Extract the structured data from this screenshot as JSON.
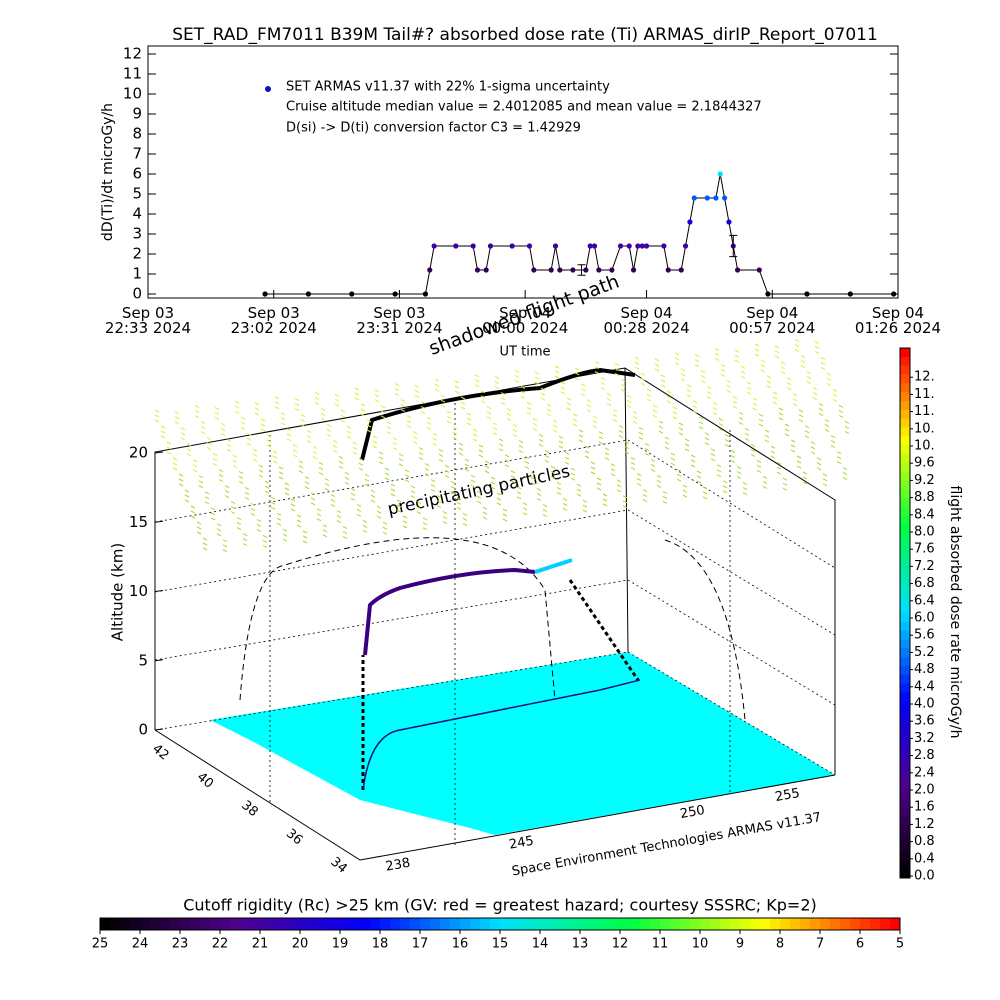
{
  "chart_data": {
    "type": "line",
    "title": "SET_RAD_FM7011  B39M Tail#? absorbed dose rate (Ti) ARMAS_dirIP_Report_07011",
    "ylabel": "dD(Ti)/dt microGy/h",
    "xlabel": "UT time",
    "legend": "SET ARMAS v11.37 with 22% 1-sigma uncertainty",
    "annotations": [
      "Cruise altitude median value = 2.4012085 and mean value = 2.1844327",
      "D(si) -> D(ti) conversion factor C3 = 1.42929"
    ],
    "x": [
      "2024-09-03 23:00",
      "2024-09-03 23:10",
      "2024-09-03 23:20",
      "2024-09-03 23:30",
      "2024-09-03 23:37",
      "2024-09-03 23:38",
      "2024-09-03 23:39",
      "2024-09-03 23:44",
      "2024-09-03 23:48",
      "2024-09-03 23:49",
      "2024-09-03 23:51",
      "2024-09-03 23:52",
      "2024-09-03 23:57",
      "2024-09-04 00:01",
      "2024-09-04 00:02",
      "2024-09-04 00:06",
      "2024-09-04 00:07",
      "2024-09-04 00:08",
      "2024-09-04 00:11",
      "2024-09-04 00:14",
      "2024-09-04 00:15",
      "2024-09-04 00:16",
      "2024-09-04 00:17",
      "2024-09-04 00:20",
      "2024-09-04 00:22",
      "2024-09-04 00:24",
      "2024-09-04 00:25",
      "2024-09-04 00:26",
      "2024-09-04 00:27",
      "2024-09-04 00:28",
      "2024-09-04 00:32",
      "2024-09-04 00:33",
      "2024-09-04 00:36",
      "2024-09-04 00:37",
      "2024-09-04 00:38",
      "2024-09-04 00:39",
      "2024-09-04 00:42",
      "2024-09-04 00:44",
      "2024-09-04 00:45",
      "2024-09-04 00:46",
      "2024-09-04 00:47",
      "2024-09-04 00:48",
      "2024-09-04 00:49",
      "2024-09-04 00:54",
      "2024-09-04 00:56",
      "2024-09-04 01:05",
      "2024-09-04 01:15",
      "2024-09-04 01:25"
    ],
    "values": [
      0,
      0,
      0,
      0,
      0,
      1.2,
      2.4,
      2.4,
      2.4,
      1.2,
      1.2,
      2.4,
      2.4,
      2.4,
      1.2,
      1.2,
      2.4,
      1.2,
      1.2,
      1.2,
      2.4,
      2.4,
      1.2,
      1.2,
      2.4,
      2.4,
      1.2,
      2.4,
      2.4,
      2.4,
      2.4,
      1.2,
      1.2,
      2.4,
      3.6,
      4.8,
      4.8,
      4.8,
      6.0,
      4.8,
      3.6,
      2.4,
      1.2,
      1.2,
      0,
      0,
      0,
      0
    ],
    "error_bars": [
      {
        "x": "2024-09-04 00:13",
        "value": 1.2,
        "error": 0.26
      },
      {
        "x": "2024-09-04 00:48",
        "value": 2.4,
        "error": 0.53
      }
    ],
    "xlim": [
      "2024-09-03 22:33",
      "2024-09-04 01:26"
    ],
    "xticks": [
      {
        "value": "2024-09-03 22:33",
        "label": "Sep 03\n22:33 2024"
      },
      {
        "value": "2024-09-03 23:02",
        "label": "Sep 03\n23:02 2024"
      },
      {
        "value": "2024-09-03 23:31",
        "label": "Sep 03\n23:31 2024"
      },
      {
        "value": "2024-09-04 00:00",
        "label": "Sep 04\n00:00 2024"
      },
      {
        "value": "2024-09-04 00:28",
        "label": "Sep 04\n00:28 2024"
      },
      {
        "value": "2024-09-04 00:57",
        "label": "Sep 04\n00:57 2024"
      },
      {
        "value": "2024-09-04 01:26",
        "label": "Sep 04\n01:26 2024"
      }
    ],
    "ylim": [
      -0.2,
      12.4
    ],
    "yticks": [
      0,
      1,
      2,
      3,
      4,
      5,
      6,
      7,
      8,
      9,
      10,
      11,
      12
    ],
    "colormap": [
      "#000000",
      "#50008c",
      "#0000ff",
      "#00e0ff",
      "#00ff40",
      "#ffff00",
      "#ff0000"
    ]
  },
  "plot3d": {
    "zlabel": "Altitude (km)",
    "zlim": [
      0,
      20
    ],
    "zticks": [
      0,
      5,
      10,
      15,
      20
    ],
    "lat_ticks": [
      42,
      40,
      38,
      36,
      34
    ],
    "lon_ticks": [
      238,
      245,
      250,
      255
    ],
    "annotations": [
      "shadowed flight path",
      "precipitating particles"
    ],
    "credit": "Space Environment Technologies ARMAS v11.37"
  },
  "dose_colorbar": {
    "label": "flight absorbed dose rate microGy/h",
    "lim": [
      0,
      12
    ],
    "ticks": [
      {
        "value": 0,
        "label": "0.0"
      },
      0.4,
      0.8,
      1.2,
      1.6,
      {
        "value": 2,
        "label": "2.0"
      },
      2.4,
      2.8,
      3.2,
      3.6,
      {
        "value": 4,
        "label": "4.0"
      },
      4.4,
      4.8,
      5.2,
      5.6,
      {
        "value": 6,
        "label": "6.0"
      },
      6.4,
      6.8,
      7.2,
      7.6,
      {
        "value": 8,
        "label": "8.0"
      },
      8.4,
      8.8,
      9.2,
      9.6,
      {
        "value": 10,
        "label": "10."
      },
      {
        "value": 10.4,
        "label": "10."
      },
      {
        "value": 10.8,
        "label": "11."
      },
      {
        "value": 11.2,
        "label": "11."
      },
      {
        "value": 11.6,
        "label": "12."
      }
    ]
  },
  "rigidity_colorbar": {
    "label": "Cutoff rigidity (Rc) >25 km (GV: red = greatest hazard; courtesy SSSRC; Kp=2)",
    "lim": [
      25,
      5
    ],
    "ticks": [
      25,
      24,
      23,
      22,
      21,
      20,
      19,
      18,
      17,
      16,
      15,
      14,
      13,
      12,
      11,
      10,
      9,
      8,
      7,
      6,
      5
    ]
  }
}
